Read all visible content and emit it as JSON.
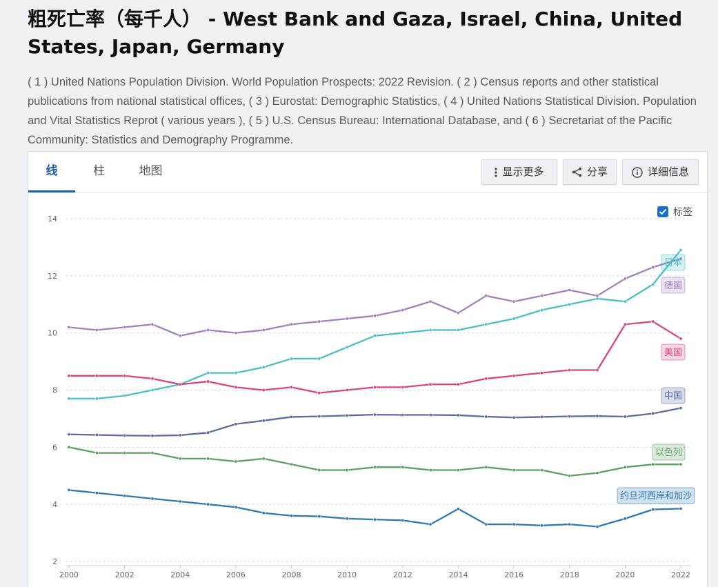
{
  "page": {
    "title": "粗死亡率（每千人） - West Bank and Gaza, Israel, China, United States, Japan, Germany",
    "source": "( 1 ) United Nations Population Division. World Population Prospects: 2022 Revision. ( 2 ) Census reports and other statistical publications from national statistical offices, ( 3 ) Eurostat: Demographic Statistics, ( 4 ) United Nations Statistical Division. Population and Vital Statistics Reprot ( various years ), ( 5 ) U.S. Census Bureau: International Database, and ( 6 ) Secretariat of the Pacific Community: Statistics and Demography Programme."
  },
  "tabs": [
    {
      "label": "线",
      "active": true
    },
    {
      "label": "柱",
      "active": false
    },
    {
      "label": "地图",
      "active": false
    }
  ],
  "toolbar": {
    "more_label": "显示更多",
    "share_label": "分享",
    "details_label": "详细信息"
  },
  "labels_toggle": {
    "label": "标签",
    "checked": true
  },
  "chart_data": {
    "type": "line",
    "x": [
      2000,
      2001,
      2002,
      2003,
      2004,
      2005,
      2006,
      2007,
      2008,
      2009,
      2010,
      2011,
      2012,
      2013,
      2014,
      2015,
      2016,
      2017,
      2018,
      2019,
      2020,
      2021,
      2022
    ],
    "xticks": [
      2000,
      2002,
      2004,
      2006,
      2008,
      2010,
      2012,
      2014,
      2016,
      2018,
      2020,
      2022
    ],
    "yticks": [
      2,
      4,
      6,
      8,
      10,
      12,
      14
    ],
    "ylim": [
      2,
      14
    ],
    "grid": "horizontal dashed",
    "series": [
      {
        "name": "日本",
        "color": "#4bbdc7",
        "values": [
          7.7,
          7.7,
          7.8,
          8.0,
          8.2,
          8.6,
          8.6,
          8.8,
          9.1,
          9.1,
          9.5,
          9.9,
          10.0,
          10.1,
          10.1,
          10.3,
          10.5,
          10.8,
          11.0,
          11.2,
          11.1,
          11.7,
          12.9
        ]
      },
      {
        "name": "德国",
        "color": "#9f7fbd",
        "values": [
          10.2,
          10.1,
          10.2,
          10.3,
          9.9,
          10.1,
          10.0,
          10.1,
          10.3,
          10.4,
          10.5,
          10.6,
          10.8,
          11.1,
          10.7,
          11.3,
          11.1,
          11.3,
          11.5,
          11.3,
          11.9,
          12.3,
          12.6
        ]
      },
      {
        "name": "美国",
        "color": "#d9447f",
        "values": [
          8.5,
          8.5,
          8.5,
          8.4,
          8.2,
          8.3,
          8.1,
          8.0,
          8.1,
          7.9,
          8.0,
          8.1,
          8.1,
          8.2,
          8.2,
          8.4,
          8.5,
          8.6,
          8.7,
          8.7,
          10.3,
          10.4,
          9.8
        ]
      },
      {
        "name": "中国",
        "color": "#5b6aa0",
        "values": [
          6.45,
          6.43,
          6.41,
          6.4,
          6.42,
          6.51,
          6.81,
          6.93,
          7.06,
          7.08,
          7.11,
          7.14,
          7.13,
          7.13,
          7.12,
          7.07,
          7.04,
          7.06,
          7.08,
          7.09,
          7.07,
          7.18,
          7.37
        ]
      },
      {
        "name": "以色列",
        "color": "#5aa05f",
        "values": [
          6.0,
          5.8,
          5.8,
          5.8,
          5.6,
          5.6,
          5.5,
          5.6,
          5.4,
          5.2,
          5.2,
          5.3,
          5.3,
          5.2,
          5.2,
          5.3,
          5.2,
          5.2,
          5.0,
          5.1,
          5.3,
          5.4,
          5.4
        ]
      },
      {
        "name": "约旦河西岸和加沙",
        "color": "#2e78b1",
        "values": [
          4.5,
          4.4,
          4.3,
          4.2,
          4.1,
          4.0,
          3.9,
          3.7,
          3.6,
          3.58,
          3.5,
          3.47,
          3.44,
          3.3,
          3.84,
          3.3,
          3.3,
          3.26,
          3.3,
          3.22,
          3.5,
          3.82,
          3.85
        ]
      }
    ]
  }
}
